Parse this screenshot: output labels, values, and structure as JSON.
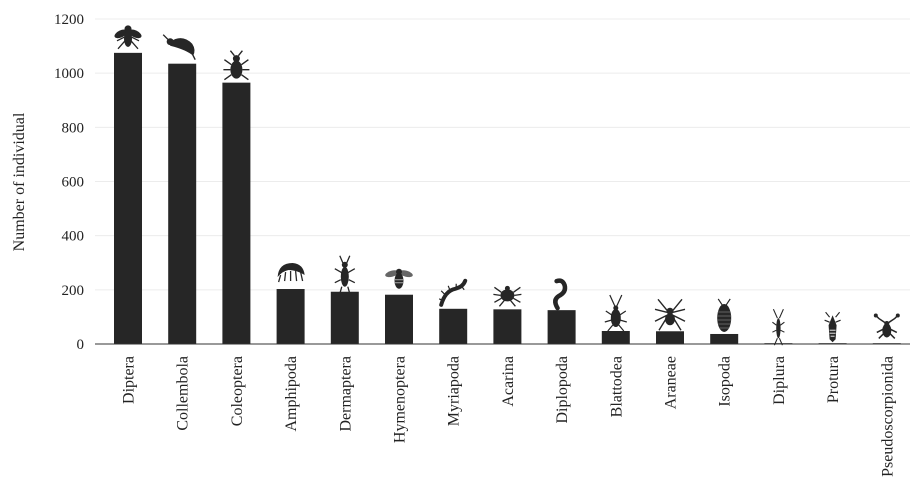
{
  "chart_data": {
    "type": "bar",
    "title": "",
    "xlabel": "",
    "ylabel": "Number of individual",
    "ylim": [
      0,
      1200
    ],
    "yticks": [
      0,
      200,
      400,
      600,
      800,
      1000,
      1200
    ],
    "grid": true,
    "bar_color": "#262626",
    "categories": [
      "Diptera",
      "Collembola",
      "Coleoptera",
      "Amphipoda",
      "Dermaptera",
      "Hymenoptera",
      "Myriapoda",
      "Acarina",
      "Diplopoda",
      "Blattodea",
      "Araneae",
      "Isopoda",
      "Diplura",
      "Protura",
      "Pseudoscorpionida"
    ],
    "values": [
      1075,
      1035,
      965,
      203,
      193,
      182,
      130,
      128,
      125,
      48,
      47,
      37,
      3,
      3,
      2
    ],
    "icons": [
      "fly-icon",
      "springtail-icon",
      "beetle-icon",
      "amphipod-icon",
      "earwig-icon",
      "bee-icon",
      "centipede-icon",
      "mite-icon",
      "millipede-icon",
      "cockroach-icon",
      "spider-icon",
      "woodlouse-icon",
      "dipluran-icon",
      "proturan-icon",
      "pseudoscorpion-icon"
    ]
  }
}
